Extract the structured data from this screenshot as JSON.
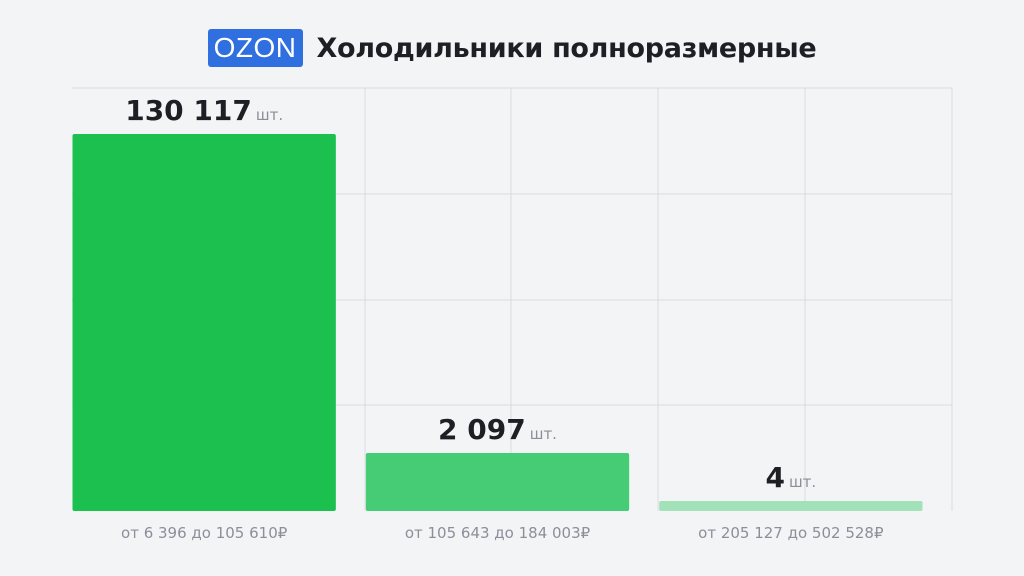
{
  "header": {
    "brand": "OZON",
    "title": "Холодильники полноразмерные"
  },
  "colors": {
    "brand": "#2f6fe0",
    "bars": [
      "#1bc04f",
      "#46cc74",
      "#a3e2b9"
    ],
    "grid": "#d9dbe0"
  },
  "chart_data": {
    "type": "bar",
    "title": "Холодильники полноразмерные",
    "categories": [
      "от 6 396 до 105 610₽",
      "от 105 643 до 184 003₽",
      "от 205 127 до 502 528₽"
    ],
    "values": [
      130117,
      2097,
      4
    ],
    "value_labels": [
      "130 117",
      "2 097",
      "4"
    ],
    "unit": "шт.",
    "xlabel": "",
    "ylabel": "",
    "grid": true,
    "legend": "none"
  }
}
